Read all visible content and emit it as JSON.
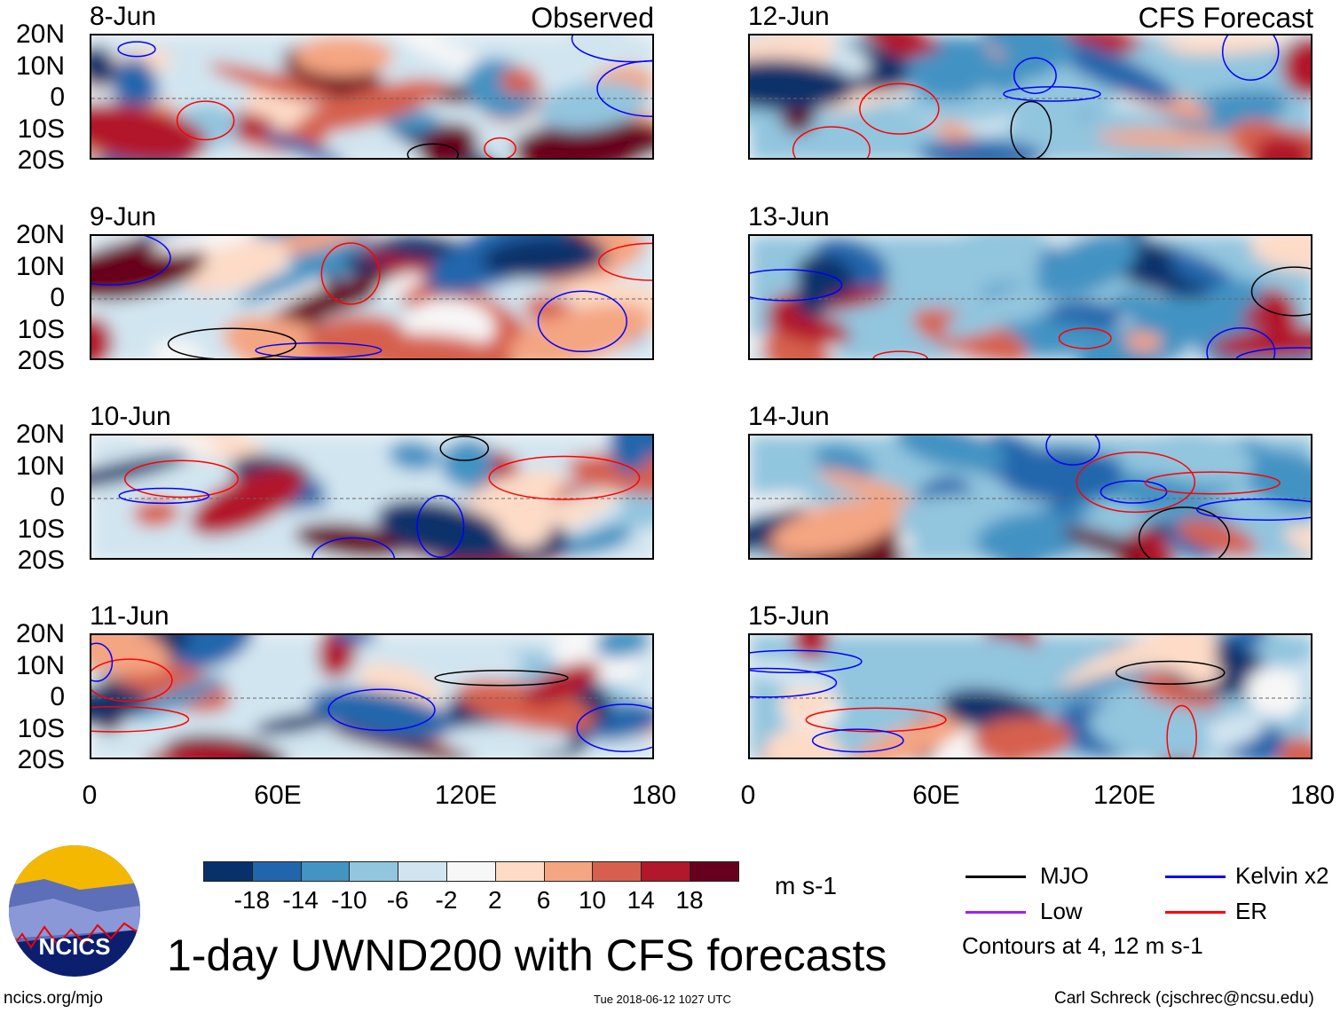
{
  "titles": {
    "observed": "Observed",
    "forecast": "CFS Forecast",
    "main": "1-day UWND200 with CFS forecasts"
  },
  "panels": [
    {
      "date": "8-Jun",
      "side": "observed"
    },
    {
      "date": "9-Jun",
      "side": "observed"
    },
    {
      "date": "10-Jun",
      "side": "observed"
    },
    {
      "date": "11-Jun",
      "side": "observed"
    },
    {
      "date": "12-Jun",
      "side": "forecast"
    },
    {
      "date": "13-Jun",
      "side": "forecast"
    },
    {
      "date": "14-Jun",
      "side": "forecast"
    },
    {
      "date": "15-Jun",
      "side": "forecast"
    }
  ],
  "lat_labels": [
    "20N",
    "10N",
    "0",
    "10S",
    "20S"
  ],
  "lon_labels": [
    "0",
    "60E",
    "120E",
    "180"
  ],
  "colorbar": {
    "colors": [
      "#08306b",
      "#2166ac",
      "#4393c3",
      "#92c5de",
      "#d1e5f0",
      "#f7f7f7",
      "#fddbc7",
      "#f4a582",
      "#d6604d",
      "#b2182b",
      "#67001f"
    ],
    "labels": [
      "-18",
      "-14",
      "-10",
      "-6",
      "-2",
      "2",
      "6",
      "10",
      "14",
      "18"
    ],
    "units": "m s-1"
  },
  "legend": {
    "items": [
      {
        "label": "MJO",
        "color": "#000000"
      },
      {
        "label": "Kelvin x2",
        "color": "#0000ff"
      },
      {
        "label": "Low",
        "color": "#a020f0"
      },
      {
        "label": "ER",
        "color": "#ff0000"
      }
    ],
    "contours_note": "Contours at 4, 12 m s-1"
  },
  "logo": {
    "text": "NCICS"
  },
  "footer": {
    "url": "ncics.org/mjo",
    "timestamp": "Tue 2018-06-12 1027 UTC",
    "author": "Carl Schreck (cjschrec@ncsu.edu)"
  }
}
